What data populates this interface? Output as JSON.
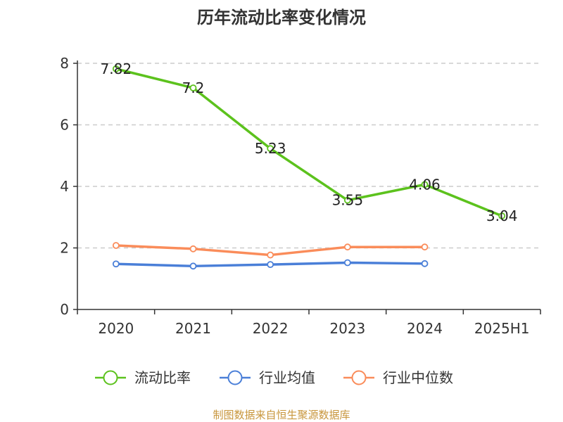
{
  "source_note": "制图数据来自恒生聚源数据库",
  "chart_data": {
    "type": "line",
    "title": "历年流动比率变化情况",
    "xlabel": "",
    "ylabel": "",
    "categories": [
      "2020",
      "2021",
      "2022",
      "2023",
      "2024",
      "2025H1"
    ],
    "ylim": [
      0,
      8
    ],
    "yticks": [
      0,
      2,
      4,
      6,
      8
    ],
    "grid": true,
    "legend_position": "bottom",
    "series": [
      {
        "name": "流动比率",
        "color": "#5cc21d",
        "values": [
          7.82,
          7.2,
          5.23,
          3.55,
          4.06,
          3.04
        ],
        "labels": [
          "7.82",
          "7.2",
          "5.23",
          "3.55",
          "4.06",
          "3.04"
        ],
        "show_labels": true
      },
      {
        "name": "行业均值",
        "color": "#4a7fd8",
        "values": [
          1.48,
          1.41,
          1.46,
          1.52,
          1.49,
          null
        ],
        "show_labels": false
      },
      {
        "name": "行业中位数",
        "color": "#fa8c5a",
        "values": [
          2.08,
          1.97,
          1.77,
          2.03,
          2.03,
          null
        ],
        "show_labels": false
      }
    ]
  }
}
